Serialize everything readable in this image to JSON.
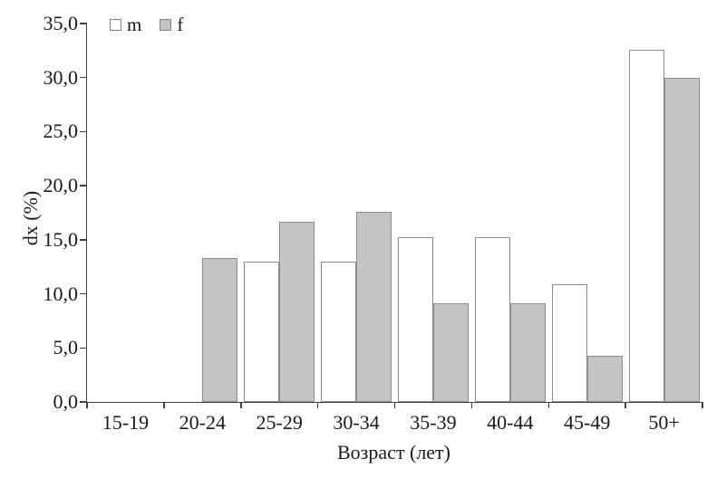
{
  "chart_data": {
    "type": "bar",
    "title": "",
    "categories": [
      "15-19",
      "20-24",
      "25-29",
      "30-34",
      "35-39",
      "40-44",
      "45-49",
      "50+"
    ],
    "series": [
      {
        "name": "m",
        "color": "#ffffff",
        "values": [
          0,
          0,
          13.0,
          13.0,
          15.2,
          15.2,
          10.9,
          32.6
        ]
      },
      {
        "name": "f",
        "color": "#c4c4c4",
        "values": [
          0,
          13.3,
          16.7,
          17.6,
          9.1,
          9.1,
          4.3,
          30.0
        ]
      }
    ],
    "xlabel": "Возраст (лет)",
    "ylabel": "dx (%)",
    "ylim": [
      0,
      35
    ],
    "ytick_step": 5,
    "ytick_labels": [
      "0,0",
      "5,0",
      "10,0",
      "15,0",
      "20,0",
      "25,0",
      "30,0",
      "35,0"
    ],
    "grid": false,
    "legend_position": "top-left"
  },
  "colors": {
    "bar_border": "#8c8c8c",
    "axis": "#404040",
    "text": "#1a1a1a"
  }
}
